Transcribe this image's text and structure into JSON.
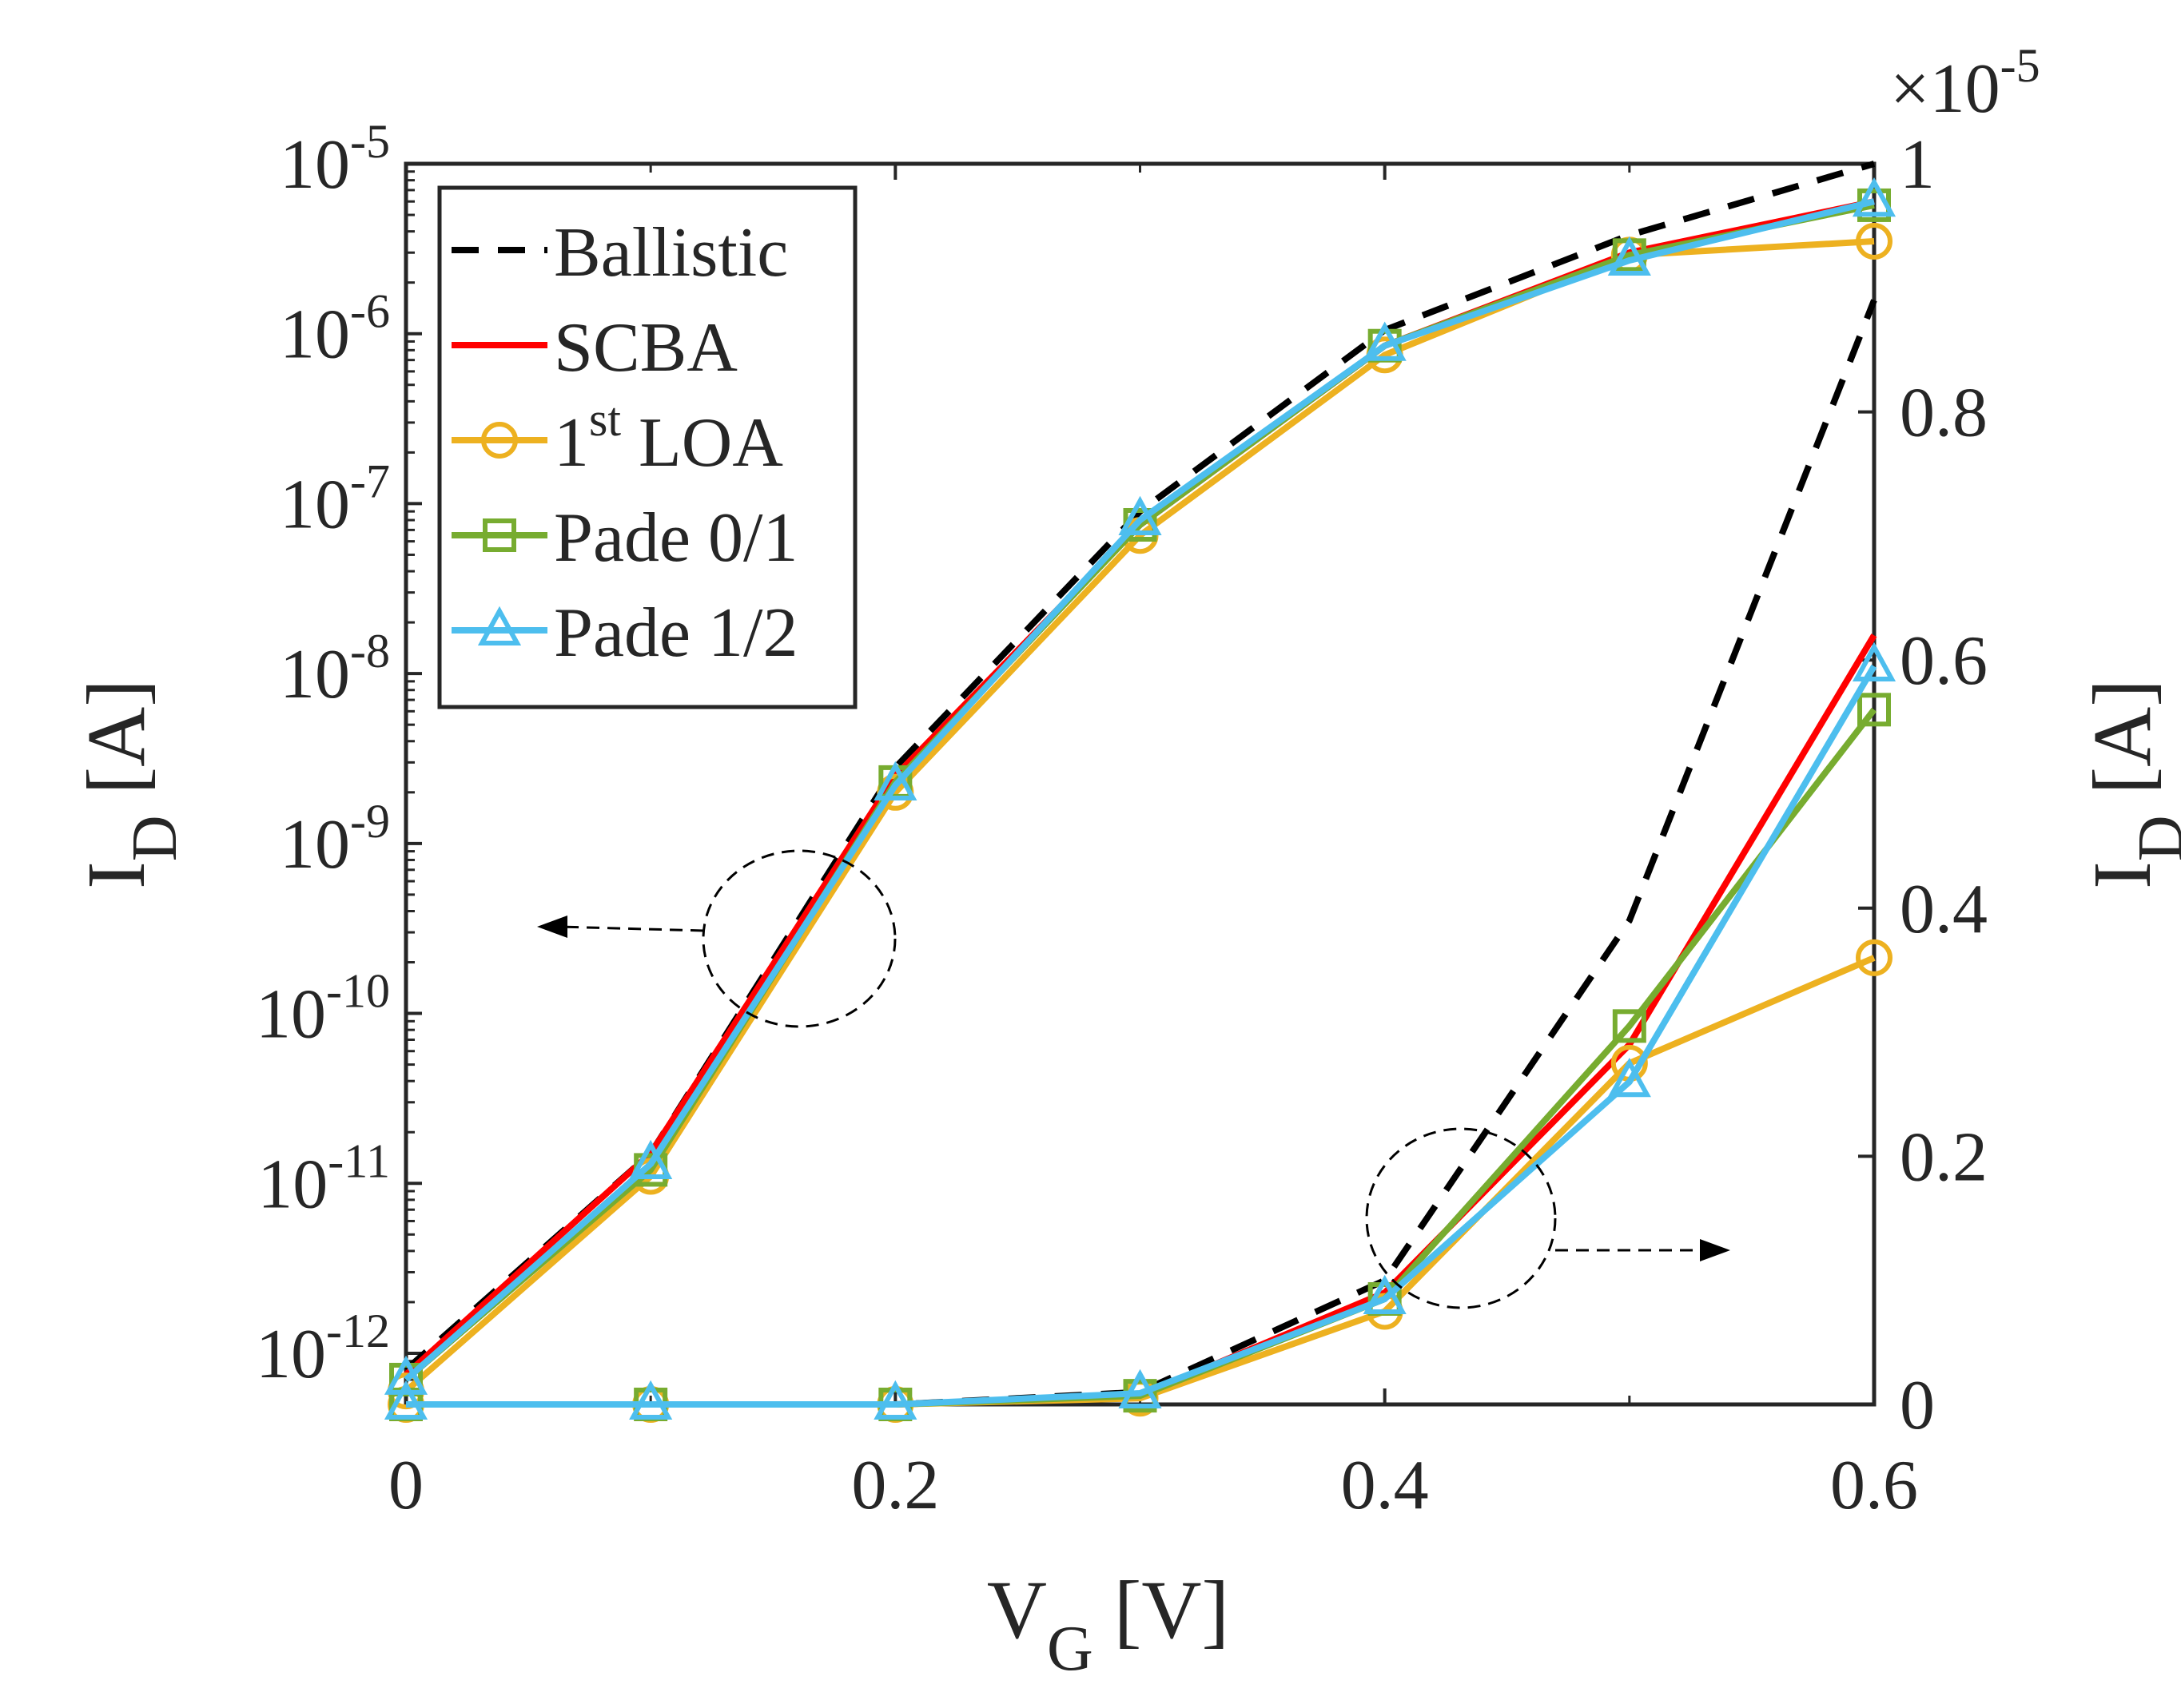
{
  "chart_data": {
    "type": "line",
    "x": [
      0,
      0.1,
      0.2,
      0.3,
      0.4,
      0.5,
      0.6
    ],
    "x_ticks": [
      {
        "value": 0,
        "label": "0"
      },
      {
        "value": 0.2,
        "label": "0.2"
      },
      {
        "value": 0.4,
        "label": "0.4"
      },
      {
        "value": 0.6,
        "label": "0.6"
      }
    ],
    "xlim": [
      0,
      0.6
    ],
    "xlabel": {
      "main": "V",
      "sub": "G",
      "unit": " [V]"
    },
    "y_left": {
      "scale": "log",
      "ylim": [
        5e-13,
        1e-05
      ],
      "label": {
        "main": "I",
        "sub": "D",
        "unit": " [A]"
      },
      "ticks": [
        {
          "value": 1e-12,
          "base": "10",
          "exp": "-12"
        },
        {
          "value": 1e-11,
          "base": "10",
          "exp": "-11"
        },
        {
          "value": 1e-10,
          "base": "10",
          "exp": "-10"
        },
        {
          "value": 1e-09,
          "base": "10",
          "exp": "-9"
        },
        {
          "value": 1e-08,
          "base": "10",
          "exp": "-8"
        },
        {
          "value": 1e-07,
          "base": "10",
          "exp": "-7"
        },
        {
          "value": 1e-06,
          "base": "10",
          "exp": "-6"
        },
        {
          "value": 1e-05,
          "base": "10",
          "exp": "-5"
        }
      ]
    },
    "y_right": {
      "scale": "linear",
      "ylim": [
        0,
        1e-05
      ],
      "multiplier": {
        "times": "×10",
        "exp": "-5"
      },
      "label": {
        "main": "I",
        "sub": "D",
        "unit": " [A]"
      },
      "ticks": [
        {
          "value": 0,
          "label": "0"
        },
        {
          "value": 2e-06,
          "label": "0.2"
        },
        {
          "value": 4e-06,
          "label": "0.4"
        },
        {
          "value": 6e-06,
          "label": "0.6"
        },
        {
          "value": 8e-06,
          "label": "0.8"
        },
        {
          "value": 1e-05,
          "label": "1"
        }
      ]
    },
    "series": [
      {
        "name": "Ballistic",
        "color": "#000000",
        "dashed": true,
        "marker": "none",
        "log_values": [
          8e-13,
          1.5e-11,
          2.8e-09,
          9e-08,
          1.05e-06,
          3.8e-06,
          1e-05
        ],
        "lin_values": [
          0.0,
          0.0,
          0.0,
          1e-07,
          1e-06,
          3.9e-06,
          8.9e-06
        ]
      },
      {
        "name": "SCBA",
        "color": "#ff0000",
        "dashed": false,
        "marker": "none",
        "log_values": [
          7.5e-13,
          1.5e-11,
          2.5e-09,
          7.5e-08,
          8.5e-07,
          3e-06,
          6e-06
        ],
        "lin_values": [
          0.0,
          0.0,
          0.0,
          7e-08,
          9e-07,
          2.9e-06,
          6.2e-06
        ]
      },
      {
        "name": "1st LOA",
        "name_main": "1",
        "name_sup": "st",
        "name_rest": " LOA",
        "color": "#edb120",
        "dashed": false,
        "marker": "circle",
        "log_values": [
          6e-13,
          1.1e-11,
          2e-09,
          6.5e-08,
          7.5e-07,
          2.9e-06,
          3.5e-06
        ],
        "lin_values": [
          0.0,
          0.0,
          0.0,
          5e-08,
          7.5e-07,
          2.75e-06,
          3.6e-06
        ]
      },
      {
        "name": "Pade 0/1",
        "color": "#77ac30",
        "dashed": false,
        "marker": "square",
        "log_values": [
          7e-13,
          1.2e-11,
          2.3e-09,
          7.5e-08,
          8.5e-07,
          2.9e-06,
          5.7e-06
        ],
        "lin_values": [
          0.0,
          0.0,
          0.0,
          7e-08,
          8.5e-07,
          3.05e-06,
          5.6e-06
        ]
      },
      {
        "name": "Pade 1/2",
        "color": "#4dbeee",
        "dashed": false,
        "marker": "triangle",
        "log_values": [
          7e-13,
          1.3e-11,
          2.2e-09,
          8e-08,
          8.5e-07,
          2.7e-06,
          6e-06
        ],
        "lin_values": [
          0.0,
          0.0,
          0.0,
          9e-08,
          8.5e-07,
          2.6e-06,
          5.95e-06
        ]
      }
    ],
    "legend": {
      "placement": "top-left"
    },
    "grid": false,
    "annotations": [
      {
        "type": "dashed-ellipse-arrow",
        "target_axis": "left",
        "direction": "left"
      },
      {
        "type": "dashed-ellipse-arrow",
        "target_axis": "right",
        "direction": "right"
      }
    ]
  }
}
